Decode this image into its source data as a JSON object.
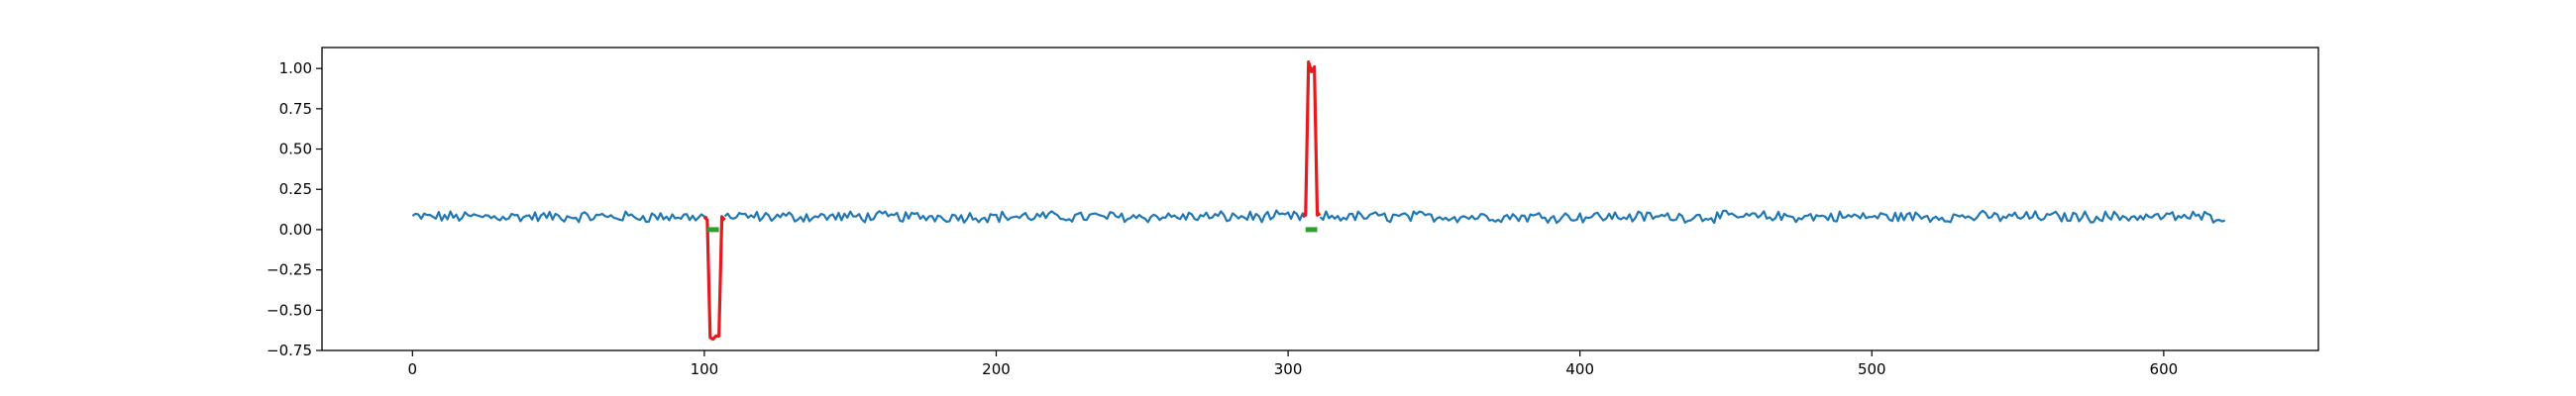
{
  "chart_data": {
    "type": "line",
    "title": "",
    "xlabel": "",
    "ylabel": "",
    "xlim": [
      -31,
      653
    ],
    "ylim": [
      -0.75,
      1.13
    ],
    "x_ticks": [
      0,
      100,
      200,
      300,
      400,
      500,
      600
    ],
    "x_tick_labels": [
      "0",
      "100",
      "200",
      "300",
      "400",
      "500",
      "600"
    ],
    "y_ticks": [
      -0.75,
      -0.5,
      -0.25,
      0.0,
      0.25,
      0.5,
      0.75,
      1.0
    ],
    "y_tick_labels": [
      "−0.75",
      "−0.50",
      "−0.25",
      "0.00",
      "0.25",
      "0.50",
      "0.75",
      "1.00"
    ],
    "grid": false,
    "series": [
      {
        "role": "signal",
        "color": "#1f77b4",
        "n_points": 622,
        "baseline": 0.08,
        "noise_amplitude": 0.03,
        "gap_ranges": [
          [
            101,
            107
          ],
          [
            306,
            311
          ]
        ]
      },
      {
        "role": "anomaly",
        "color": "#e41a1c",
        "segments": [
          {
            "x": [
              100,
              101,
              102,
              103,
              104,
              105,
              106,
              107
            ],
            "y": [
              0.08,
              0.06,
              -0.67,
              -0.68,
              -0.66,
              -0.66,
              0.08,
              0.06
            ]
          },
          {
            "x": [
              305,
              306,
              307,
              308,
              309,
              310,
              311
            ],
            "y": [
              0.08,
              0.09,
              1.04,
              0.98,
              1.01,
              0.09,
              0.1
            ]
          }
        ]
      },
      {
        "role": "marker",
        "color": "#2ca02c",
        "segments": [
          {
            "x": [
              101,
              105
            ],
            "y": [
              0.0,
              0.0
            ]
          },
          {
            "x": [
              306,
              310
            ],
            "y": [
              0.0,
              0.0
            ]
          }
        ]
      }
    ]
  }
}
